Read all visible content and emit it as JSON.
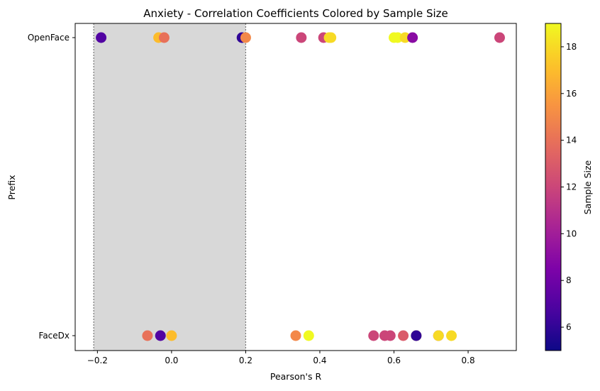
{
  "chart_data": {
    "type": "scatter",
    "title": "Anxiety - Correlation Coefficients Colored by Sample Size",
    "xlabel": "Pearson's R",
    "ylabel": "Prefix",
    "xlim": [
      -0.26,
      0.93
    ],
    "x_ticks": [
      {
        "value": -0.2,
        "label": "−0.2"
      },
      {
        "value": 0.0,
        "label": "0.0"
      },
      {
        "value": 0.2,
        "label": "0.2"
      },
      {
        "value": 0.4,
        "label": "0.4"
      },
      {
        "value": 0.6,
        "label": "0.6"
      },
      {
        "value": 0.8,
        "label": "0.8"
      }
    ],
    "categories": [
      "FaceDx",
      "OpenFace"
    ],
    "shaded_band": {
      "from": -0.21,
      "to": 0.2,
      "color": "#d8d8d8"
    },
    "colorbar": {
      "label": "Sample Size",
      "min": 5,
      "max": 19,
      "ticks": [
        6,
        8,
        10,
        12,
        14,
        16,
        18
      ],
      "colormap": "plasma"
    },
    "series": [
      {
        "category": "OpenFace",
        "points": [
          {
            "r": -0.19,
            "n": 7
          },
          {
            "r": -0.035,
            "n": 17
          },
          {
            "r": -0.02,
            "n": 14
          },
          {
            "r": 0.19,
            "n": 6
          },
          {
            "r": 0.2,
            "n": 15
          },
          {
            "r": 0.35,
            "n": 12
          },
          {
            "r": 0.41,
            "n": 12
          },
          {
            "r": 0.425,
            "n": 18
          },
          {
            "r": 0.43,
            "n": 18
          },
          {
            "r": 0.6,
            "n": 19
          },
          {
            "r": 0.61,
            "n": 19
          },
          {
            "r": 0.63,
            "n": 18
          },
          {
            "r": 0.65,
            "n": 9
          },
          {
            "r": 0.885,
            "n": 12
          }
        ]
      },
      {
        "category": "FaceDx",
        "points": [
          {
            "r": -0.065,
            "n": 14
          },
          {
            "r": -0.03,
            "n": 7
          },
          {
            "r": 0.0,
            "n": 17
          },
          {
            "r": 0.335,
            "n": 15
          },
          {
            "r": 0.37,
            "n": 19
          },
          {
            "r": 0.545,
            "n": 12
          },
          {
            "r": 0.575,
            "n": 12
          },
          {
            "r": 0.59,
            "n": 12
          },
          {
            "r": 0.625,
            "n": 13
          },
          {
            "r": 0.66,
            "n": 17
          },
          {
            "r": 0.66,
            "n": 6
          },
          {
            "r": 0.72,
            "n": 10
          },
          {
            "r": 0.72,
            "n": 18
          },
          {
            "r": 0.755,
            "n": 18
          }
        ]
      }
    ]
  }
}
